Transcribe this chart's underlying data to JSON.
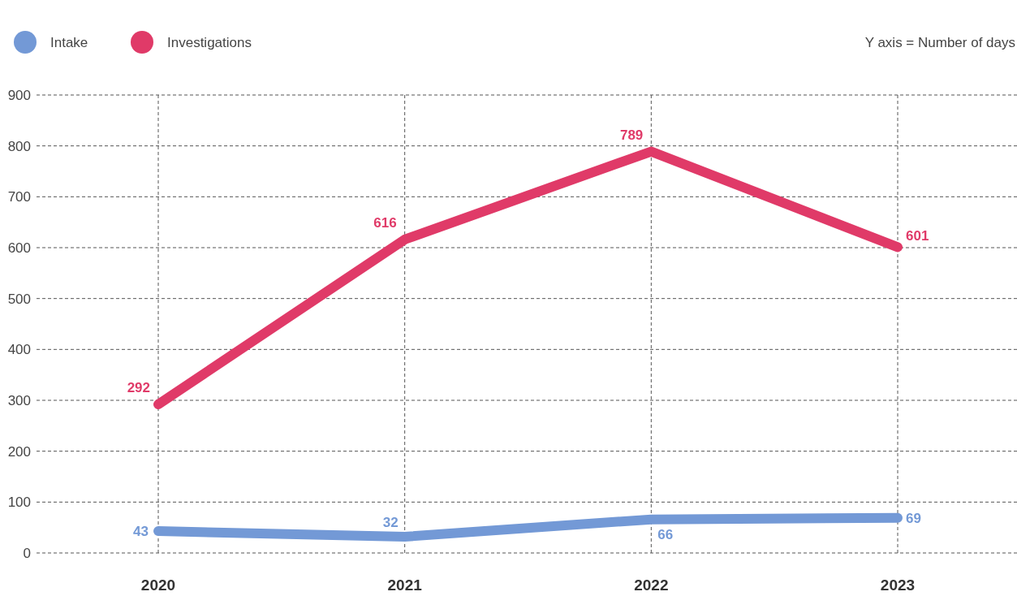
{
  "chart_data": {
    "type": "line",
    "ylabel": "Y axis = Number of days",
    "categories": [
      "2020",
      "2021",
      "2022",
      "2023"
    ],
    "series": [
      {
        "name": "Intake",
        "color": "#7399d6",
        "values": [
          43,
          32,
          66,
          69
        ]
      },
      {
        "name": "Investigations",
        "color": "#e03a68",
        "values": [
          292,
          616,
          789,
          601
        ]
      }
    ],
    "ylim": [
      0,
      900
    ],
    "yticks": [
      0,
      100,
      200,
      300,
      400,
      500,
      600,
      700,
      800,
      900
    ],
    "grid": true,
    "legend": "top left",
    "data_labels": true,
    "marker": "none",
    "line_style": "solid"
  }
}
